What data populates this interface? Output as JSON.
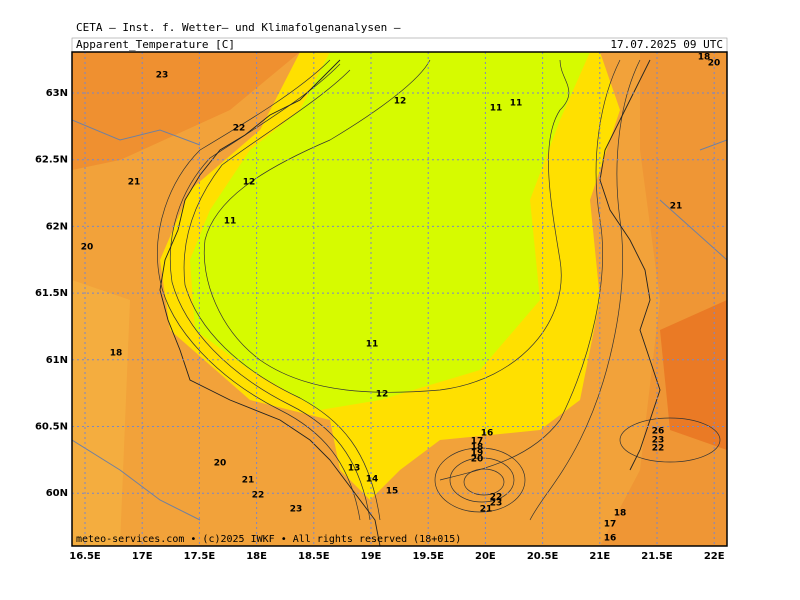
{
  "header": {
    "title": "CETA — Inst. f. Wetter— und Klimafolgenanalysen —",
    "parameter": "Apparent_Temperature [C]",
    "valid_time": "17.07.2025 09 UTC"
  },
  "map": {
    "lon_labels": [
      "16.5E",
      "17E",
      "17.5E",
      "18E",
      "18.5E",
      "19E",
      "19.5E",
      "20E",
      "20.5E",
      "21E",
      "21.5E",
      "22E"
    ],
    "lat_labels": [
      "63N",
      "62.5N",
      "62N",
      "61.5N",
      "61N",
      "60.5N",
      "60N"
    ],
    "contour_labels": [
      23,
      22,
      21,
      20,
      18,
      12,
      11,
      11,
      12,
      11,
      11,
      12,
      16,
      17,
      18,
      19,
      20,
      13,
      14,
      15,
      20,
      21,
      22,
      23,
      21,
      22,
      23,
      21,
      26,
      23,
      22,
      18,
      17,
      16,
      18,
      20
    ],
    "footer": "meteo-services.com • (c)2025 IWKF • All rights reserved (18+015)"
  }
}
